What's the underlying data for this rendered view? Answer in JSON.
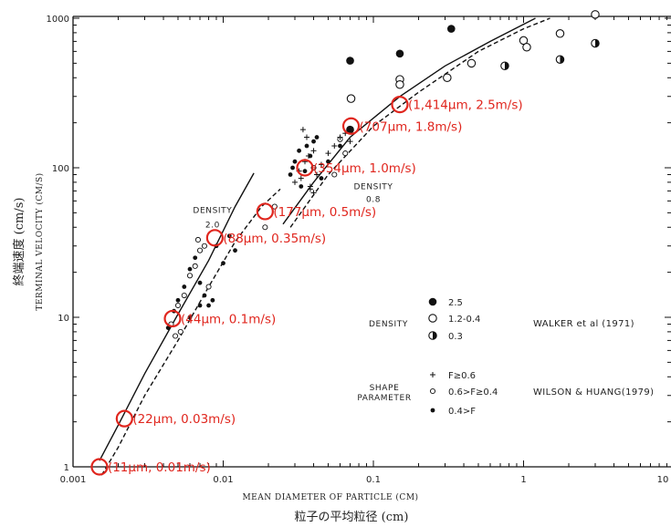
{
  "chart_data": {
    "type": "scatter",
    "title": "",
    "xlabel": "MEAN DIAMETER OF PARTICLE (CM)",
    "xlabel_jp": "粒子の平均粒径 (cm)",
    "ylabel": "TERMINAL VELOCITY (CM/S)",
    "ylabel_jp": "終端速度 (cm/s)",
    "xscale": "log",
    "yscale": "log",
    "xlim": [
      0.001,
      10
    ],
    "ylim": [
      1,
      1000
    ],
    "x_ticks": [
      0.001,
      0.01,
      0.1,
      1,
      10
    ],
    "x_tick_labels": [
      "0.001",
      "0.01",
      "0.1",
      "1",
      "10"
    ],
    "y_ticks": [
      1,
      10,
      100,
      1000
    ],
    "y_tick_labels": [
      "1",
      "10",
      "100",
      "1000"
    ],
    "grid": false,
    "curves": [
      {
        "name": "",
        "style": "solid",
        "points": [
          [
            0.0015,
            1.1
          ],
          [
            0.002,
            1.9
          ],
          [
            0.003,
            4.2
          ],
          [
            0.005,
            10.5
          ],
          [
            0.008,
            24
          ],
          [
            0.012,
            55
          ],
          [
            0.016,
            92
          ]
        ]
      },
      {
        "name": "",
        "style": "dashed",
        "points": [
          [
            0.00155,
            0.88
          ],
          [
            0.002,
            1.35
          ],
          [
            0.003,
            3.0
          ],
          [
            0.005,
            7.0
          ],
          [
            0.008,
            16
          ],
          [
            0.012,
            32
          ],
          [
            0.018,
            55
          ],
          [
            0.024,
            72
          ]
        ]
      },
      {
        "name": "",
        "style": "solid",
        "points": [
          [
            0.025,
            42
          ],
          [
            0.04,
            80
          ],
          [
            0.07,
            160
          ],
          [
            0.15,
            300
          ],
          [
            0.3,
            480
          ],
          [
            0.6,
            700
          ],
          [
            1.2,
            1000
          ]
        ]
      },
      {
        "name": "",
        "style": "dashed",
        "points": [
          [
            0.028,
            40
          ],
          [
            0.05,
            90
          ],
          [
            0.1,
            190
          ],
          [
            0.2,
            320
          ],
          [
            0.5,
            600
          ],
          [
            1.0,
            850
          ],
          [
            1.5,
            1000
          ]
        ]
      }
    ],
    "annotations_circled": [
      {
        "x": 0.0015,
        "y": 1.0,
        "label": "(11μm, 0.01m/s)"
      },
      {
        "x": 0.0022,
        "y": 2.1,
        "label": "(22μm, 0.03m/s)"
      },
      {
        "x": 0.0046,
        "y": 9.8,
        "label": "(44μm, 0.1m/s)"
      },
      {
        "x": 0.0088,
        "y": 34,
        "label": "(88μm, 0.35m/s)"
      },
      {
        "x": 0.019,
        "y": 51,
        "label": "(177μm, 0.5m/s)"
      },
      {
        "x": 0.035,
        "y": 100,
        "label": "(354μm, 1.0m/s)"
      },
      {
        "x": 0.071,
        "y": 190,
        "label": "(707μm, 1.8m/s)"
      },
      {
        "x": 0.15,
        "y": 265,
        "label": "(1,414μm, 2.5m/s)"
      }
    ],
    "text_labels": [
      {
        "text": "DENSITY",
        "x": 0.0085,
        "y": 50
      },
      {
        "text": "2.0",
        "x": 0.0085,
        "y": 40
      },
      {
        "text": "DENSITY",
        "x": 0.1,
        "y": 72
      },
      {
        "text": "0.8",
        "x": 0.1,
        "y": 59
      }
    ],
    "series": [
      {
        "marker": "filled",
        "points": [
          [
            0.0043,
            8.5
          ],
          [
            0.0047,
            11
          ],
          [
            0.005,
            13
          ],
          [
            0.0055,
            16
          ],
          [
            0.006,
            21
          ],
          [
            0.0065,
            25
          ],
          [
            0.007,
            17
          ],
          [
            0.0075,
            14
          ],
          [
            0.008,
            12
          ],
          [
            0.0085,
            13
          ],
          [
            0.009,
            30
          ],
          [
            0.01,
            23
          ],
          [
            0.011,
            35
          ],
          [
            0.012,
            28
          ],
          [
            0.006,
            10
          ],
          [
            0.007,
            12
          ],
          [
            0.028,
            90
          ],
          [
            0.03,
            110
          ],
          [
            0.032,
            130
          ],
          [
            0.035,
            95
          ],
          [
            0.038,
            120
          ],
          [
            0.04,
            150
          ],
          [
            0.033,
            75
          ],
          [
            0.036,
            140
          ],
          [
            0.029,
            100
          ],
          [
            0.045,
            85
          ],
          [
            0.05,
            110
          ],
          [
            0.042,
            160
          ],
          [
            0.06,
            140
          ]
        ]
      },
      {
        "marker": "open-small",
        "points": [
          [
            0.0045,
            9
          ],
          [
            0.005,
            12
          ],
          [
            0.0055,
            14
          ],
          [
            0.006,
            19
          ],
          [
            0.0065,
            22
          ],
          [
            0.007,
            28
          ],
          [
            0.0068,
            33
          ],
          [
            0.0075,
            30
          ],
          [
            0.008,
            16
          ],
          [
            0.0052,
            8
          ],
          [
            0.0048,
            7.5
          ],
          [
            0.019,
            40
          ],
          [
            0.022,
            55
          ],
          [
            0.04,
            100
          ],
          [
            0.055,
            90
          ],
          [
            0.06,
            155
          ],
          [
            0.065,
            125
          ],
          [
            0.07,
            180
          ]
        ]
      },
      {
        "marker": "plus",
        "points": [
          [
            0.03,
            80
          ],
          [
            0.032,
            95
          ],
          [
            0.033,
            85
          ],
          [
            0.035,
            110
          ],
          [
            0.037,
            120
          ],
          [
            0.038,
            75
          ],
          [
            0.04,
            130
          ],
          [
            0.042,
            90
          ],
          [
            0.045,
            105
          ],
          [
            0.05,
            125
          ],
          [
            0.055,
            140
          ],
          [
            0.06,
            160
          ],
          [
            0.065,
            170
          ],
          [
            0.07,
            150
          ],
          [
            0.034,
            180
          ],
          [
            0.036,
            160
          ],
          [
            0.038,
            72
          ],
          [
            0.04,
            68
          ]
        ]
      },
      {
        "name": "2.5",
        "marker": "filled-large",
        "points": [
          [
            0.07,
            520
          ],
          [
            0.15,
            580
          ],
          [
            0.33,
            850
          ],
          [
            0.07,
            180
          ]
        ]
      },
      {
        "name": "1.2-0.4",
        "marker": "open-large",
        "points": [
          [
            0.071,
            290
          ],
          [
            0.15,
            390
          ],
          [
            0.15,
            360
          ],
          [
            0.31,
            400
          ],
          [
            0.45,
            500
          ],
          [
            1.0,
            710
          ],
          [
            1.05,
            640
          ],
          [
            1.75,
            790
          ],
          [
            3.0,
            1060
          ]
        ]
      },
      {
        "name": "0.3",
        "marker": "half",
        "points": [
          [
            0.75,
            480
          ],
          [
            1.75,
            530
          ],
          [
            3.0,
            680
          ]
        ]
      }
    ],
    "legend": {
      "placement": "bottom-right",
      "density_title": "DENSITY",
      "density_items": [
        {
          "marker": "filled-large",
          "label": "2.5"
        },
        {
          "marker": "open-large",
          "label": "1.2-0.4"
        },
        {
          "marker": "half",
          "label": "0.3"
        }
      ],
      "density_ref": "WALKER et al (1971)",
      "shape_title_1": "SHAPE",
      "shape_title_2": "PARAMETER",
      "shape_items": [
        {
          "marker": "plus",
          "label": "F≥0.6"
        },
        {
          "marker": "open-small",
          "label": "0.6>F≥0.4"
        },
        {
          "marker": "filled",
          "label": "0.4>F"
        }
      ],
      "shape_ref": "WILSON & HUANG(1979)"
    },
    "colors": {
      "annotation": "#e0261e",
      "ink": "#111111"
    }
  }
}
